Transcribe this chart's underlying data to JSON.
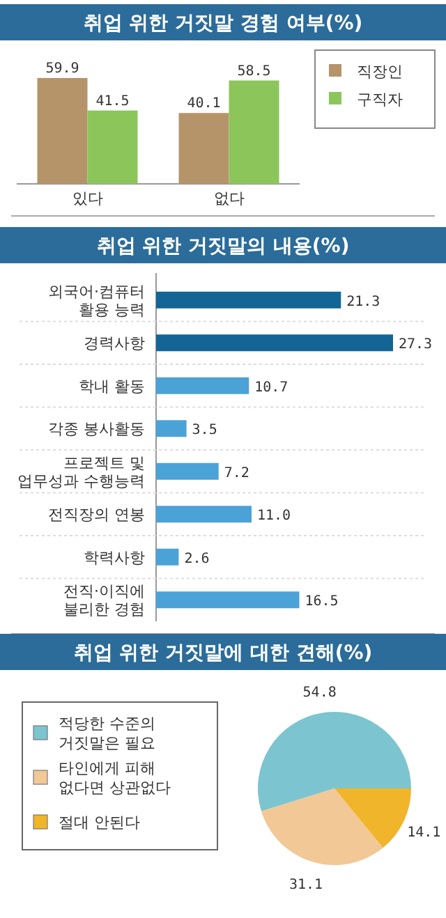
{
  "chart_data": [
    {
      "type": "bar",
      "title": "취업 위한 거짓말 경험 여부(%)",
      "categories": [
        "있다",
        "없다"
      ],
      "series": [
        {
          "name": "직장인",
          "color": "#b5946a",
          "values": [
            59.9,
            40.1
          ]
        },
        {
          "name": "구직자",
          "color": "#8cc65a",
          "values": [
            41.5,
            58.5
          ]
        }
      ],
      "data_labels": true,
      "legend": "right"
    },
    {
      "type": "bar",
      "title": "취업 위한 거짓말의 내용(%)",
      "orientation": "horizontal",
      "categories": [
        "외국어·컴퓨터\n활용 능력",
        "경력사항",
        "학내 활동",
        "각종 봉사활동",
        "프로젝트 및\n업무성과 수행능력",
        "전직장의 연봉",
        "학력사항",
        "전직·이직에\n불리한 경험"
      ],
      "values": [
        21.3,
        27.3,
        10.7,
        3.5,
        7.2,
        11.0,
        2.6,
        16.5
      ],
      "value_labels": [
        "21.3",
        "27.3",
        "10.7",
        "3.5",
        "7.2",
        "11.0",
        "2.6",
        "16.5"
      ],
      "colors": [
        "#136596",
        "#136596",
        "#4ba2d6",
        "#4ba2d6",
        "#4ba2d6",
        "#4ba2d6",
        "#4ba2d6",
        "#4ba2d6"
      ]
    },
    {
      "type": "pie",
      "title": "취업 위한 거짓말에 대한 견해(%)",
      "categories": [
        "적당한 수준의\n거짓말은 필요",
        "타인에게 피해\n없다면 상관없다",
        "절대 안된다"
      ],
      "values": [
        54.8,
        31.1,
        14.1
      ],
      "colors": [
        "#7cc5d0",
        "#f1c896",
        "#f0b52a"
      ],
      "data_labels": true,
      "legend": "left"
    }
  ]
}
